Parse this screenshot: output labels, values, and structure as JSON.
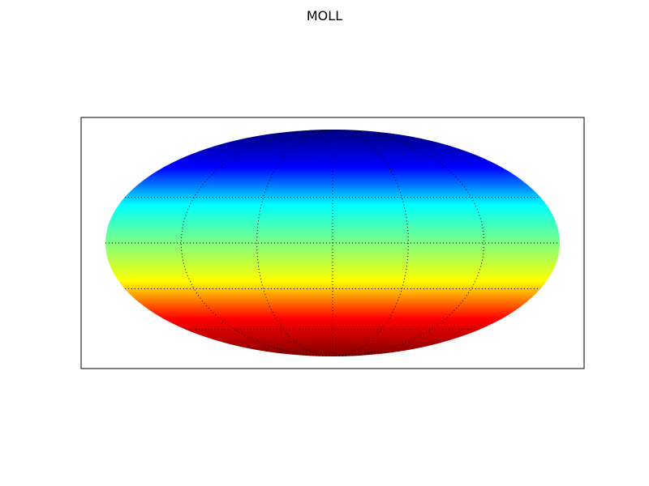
{
  "title": "MOLL",
  "map": {
    "projection": "mollweide",
    "colormap": "jet",
    "gradient_direction": "north-to-south",
    "colormap_stops": [
      "#00007f",
      "#0000ff",
      "#00ffff",
      "#7fff7f",
      "#ffff00",
      "#ff0000",
      "#7f0000"
    ],
    "graticule": {
      "parallel_spacing_deg": 30,
      "meridian_spacing_deg": 60,
      "line_color": "#000000",
      "line_style": "dotted"
    },
    "frame_color": "#000000"
  }
}
